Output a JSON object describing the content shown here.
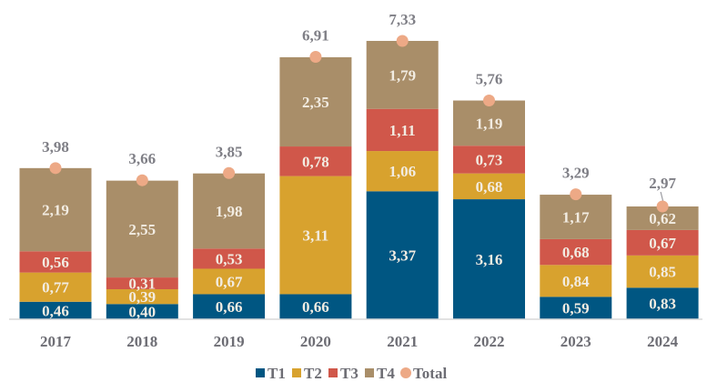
{
  "chart_data": {
    "type": "bar",
    "stacked": true,
    "title": "",
    "xlabel": "",
    "ylabel": "",
    "ylim": [
      0,
      7.6
    ],
    "grid": false,
    "legend_position": "bottom",
    "categories": [
      "2017",
      "2018",
      "2019",
      "2020",
      "2021",
      "2022",
      "2023",
      "2024"
    ],
    "series": [
      {
        "name": "T1",
        "color": "#005682",
        "values": [
          0.46,
          0.4,
          0.66,
          0.66,
          3.37,
          3.16,
          0.59,
          0.83
        ],
        "labels": [
          "0,46",
          "0,40",
          "0,66",
          "0,66",
          "3,37",
          "3,16",
          "0,59",
          "0,83"
        ]
      },
      {
        "name": "T2",
        "color": "#d8a22e",
        "values": [
          0.77,
          0.39,
          0.67,
          3.11,
          1.06,
          0.68,
          0.84,
          0.85
        ],
        "labels": [
          "0,77",
          "0,39",
          "0,67",
          "3,11",
          "1,06",
          "0,68",
          "0,84",
          "0,85"
        ]
      },
      {
        "name": "T3",
        "color": "#d0574a",
        "values": [
          0.56,
          0.31,
          0.53,
          0.78,
          1.11,
          0.73,
          0.68,
          0.67
        ],
        "labels": [
          "0,56",
          "0,31",
          "0,53",
          "0,78",
          "1,11",
          "0,73",
          "0,68",
          "0,67"
        ]
      },
      {
        "name": "T4",
        "color": "#a98e69",
        "values": [
          2.19,
          2.55,
          1.98,
          2.35,
          1.79,
          1.19,
          1.17,
          0.62
        ],
        "labels": [
          "2,19",
          "2,55",
          "1,98",
          "2,35",
          "1,79",
          "1,19",
          "1,17",
          "0,62"
        ]
      }
    ],
    "total": {
      "name": "Total",
      "color": "#eda986",
      "values": [
        3.98,
        3.66,
        3.85,
        6.91,
        7.33,
        5.76,
        3.29,
        2.97
      ],
      "labels": [
        "3,98",
        "3,66",
        "3,85",
        "6,91",
        "7,33",
        "5,76",
        "3,29",
        "2,97"
      ]
    }
  }
}
